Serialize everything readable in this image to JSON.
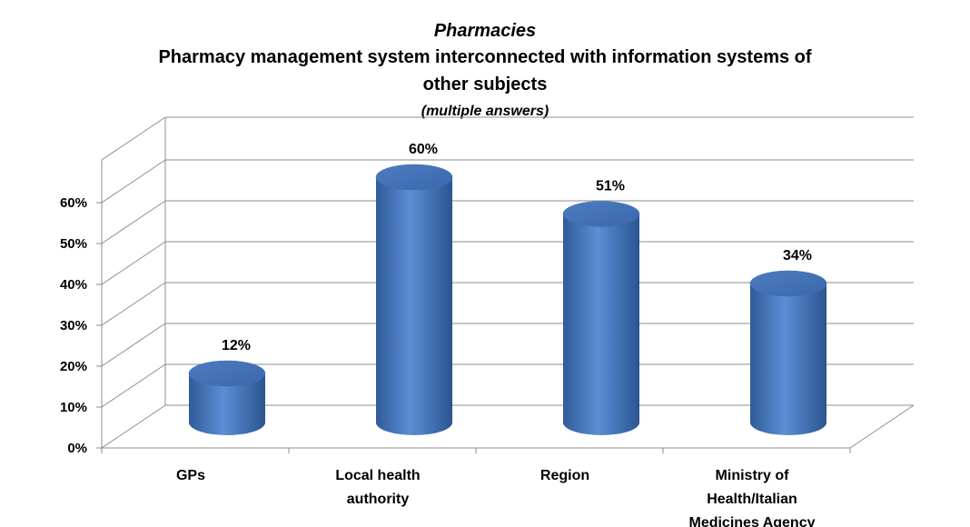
{
  "chart_data": {
    "type": "bar",
    "title": "Pharmacies",
    "subtitle_lines": [
      "Pharmacy management system interconnected with information systems of",
      "other subjects",
      "(multiple answers)"
    ],
    "categories": [
      "GPs",
      "Local health authority",
      "Region",
      "Ministry of Health/Italian Medicines Agency"
    ],
    "category_label_lines": [
      [
        "GPs"
      ],
      [
        "Local health",
        "authority"
      ],
      [
        "Region"
      ],
      [
        "Ministry of",
        "Health/Italian",
        "Medicines Agency"
      ]
    ],
    "values": [
      12,
      60,
      51,
      34
    ],
    "data_labels": [
      "12%",
      "60%",
      "51%",
      "34%"
    ],
    "y_ticks": [
      0,
      10,
      20,
      30,
      40,
      50,
      60
    ],
    "y_tick_labels": [
      "0%",
      "10%",
      "20%",
      "30%",
      "40%",
      "50%",
      "60%"
    ],
    "ylim": [
      0,
      60
    ],
    "xlabel": "",
    "ylabel": "",
    "grid": true,
    "legend": "none",
    "bar_color": "#4F81BD",
    "bar_shape": "cylinder-3d"
  }
}
